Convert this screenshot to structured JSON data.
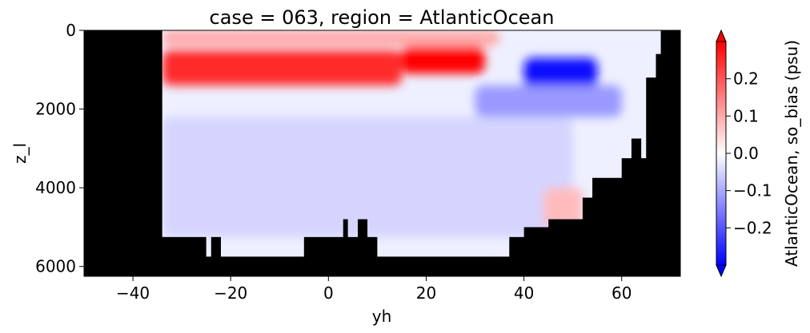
{
  "chart_data": {
    "type": "heatmap",
    "title": "case = 063, region = AtlanticOcean",
    "xlabel": "yh",
    "ylabel": "z_l",
    "xlim": [
      -50,
      72
    ],
    "ylim": [
      6250,
      0
    ],
    "x_ticks": [
      -40,
      -20,
      0,
      20,
      40,
      60
    ],
    "x_tick_labels": [
      "−40",
      "−20",
      "0",
      "20",
      "40",
      "60"
    ],
    "y_ticks": [
      0,
      2000,
      4000,
      6000
    ],
    "y_tick_labels": [
      "0",
      "2000",
      "4000",
      "6000"
    ],
    "colorbar": {
      "label": "AtlanticOcean, so_bias (psu)",
      "colormap": "bwr",
      "vmin": -0.3,
      "vmax": 0.3,
      "extend": "both",
      "ticks": [
        -0.2,
        -0.1,
        0.0,
        0.1,
        0.2
      ],
      "tick_labels": [
        "−0.2",
        "−0.1",
        "0.0",
        "0.1",
        "0.2"
      ]
    },
    "mask_color": "#000000",
    "ocean_extent": {
      "x_range": [
        -34,
        68
      ],
      "bottom_depth_profile": [
        [
          -34,
          5250
        ],
        [
          -25,
          5250
        ],
        [
          -25,
          5750
        ],
        [
          -24,
          5750
        ],
        [
          -24,
          5250
        ],
        [
          -22,
          5250
        ],
        [
          -22,
          5750
        ],
        [
          -5,
          5750
        ],
        [
          -5,
          5250
        ],
        [
          3,
          5250
        ],
        [
          3,
          4800
        ],
        [
          4,
          4800
        ],
        [
          4,
          5250
        ],
        [
          6,
          5250
        ],
        [
          6,
          4800
        ],
        [
          8,
          4800
        ],
        [
          8,
          5250
        ],
        [
          10,
          5250
        ],
        [
          10,
          5750
        ],
        [
          37,
          5750
        ],
        [
          37,
          5250
        ],
        [
          40,
          5250
        ],
        [
          40,
          5000
        ],
        [
          45,
          5000
        ],
        [
          45,
          4800
        ],
        [
          52,
          4800
        ],
        [
          52,
          4250
        ],
        [
          54,
          4250
        ],
        [
          54,
          3750
        ],
        [
          60,
          3750
        ],
        [
          60,
          3250
        ],
        [
          62,
          3250
        ],
        [
          62,
          2750
        ],
        [
          64,
          2750
        ],
        [
          64,
          3250
        ],
        [
          65,
          3250
        ],
        [
          65,
          1200
        ],
        [
          67,
          1200
        ],
        [
          67,
          600
        ],
        [
          68,
          600
        ],
        [
          68,
          0
        ]
      ]
    },
    "bias_features": [
      {
        "name": "upper positive band",
        "x": [
          -34,
          15
        ],
        "z": [
          500,
          1400
        ],
        "value": 0.25
      },
      {
        "name": "subtropical positive core",
        "x": [
          15,
          32
        ],
        "z": [
          400,
          1100
        ],
        "value": 0.3
      },
      {
        "name": "surface mixed bias",
        "x": [
          -34,
          35
        ],
        "z": [
          0,
          400
        ],
        "value": 0.1
      },
      {
        "name": "northern negative core",
        "x": [
          40,
          55
        ],
        "z": [
          700,
          1500
        ],
        "value": -0.28
      },
      {
        "name": "intermediate negative",
        "x": [
          30,
          60
        ],
        "z": [
          1400,
          2200
        ],
        "value": -0.12
      },
      {
        "name": "deep weak negative",
        "x": [
          -34,
          50
        ],
        "z": [
          2200,
          5250
        ],
        "value": -0.05
      },
      {
        "name": "deep weak positive",
        "x": [
          44,
          52
        ],
        "z": [
          4000,
          5000
        ],
        "value": 0.08
      }
    ]
  }
}
